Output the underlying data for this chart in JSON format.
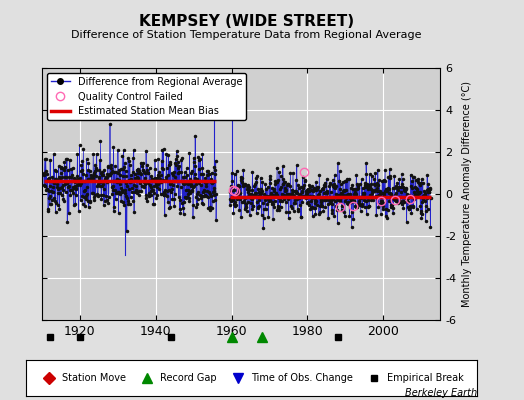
{
  "title": "KEMPSEY (WIDE STREET)",
  "subtitle": "Difference of Station Temperature Data from Regional Average",
  "ylabel": "Monthly Temperature Anomaly Difference (°C)",
  "credit": "Berkeley Earth",
  "xlim": [
    1910,
    2015
  ],
  "ylim": [
    -6,
    6
  ],
  "yticks": [
    -6,
    -4,
    -2,
    0,
    2,
    4,
    6
  ],
  "xticks": [
    1920,
    1940,
    1960,
    1980,
    2000
  ],
  "bg_color": "#e0e0e0",
  "plot_bg_color": "#d0d0d0",
  "grid_color": "#ffffff",
  "data_color": "#2222cc",
  "bias_color": "#dd0000",
  "qc_color": "#ff69b4",
  "seed": 42,
  "segment1_start": 1910.5,
  "segment1_end": 1956.0,
  "segment1_bias": 0.6,
  "segment1_n": 546,
  "segment1_mean": 0.55,
  "segment1_std": 0.72,
  "segment2_start": 1959.5,
  "segment2_end": 2012.5,
  "segment2_bias": -0.15,
  "segment2_n": 636,
  "segment2_mean": -0.05,
  "segment2_std": 0.52,
  "empirical_breaks": [
    1912,
    1920,
    1944,
    1988
  ],
  "record_gaps": [
    1960,
    1968
  ],
  "time_of_obs_changes": [],
  "station_moves": [],
  "qc_failed": [
    [
      1960.3,
      0.2
    ],
    [
      1960.8,
      0.15
    ],
    [
      1979.0,
      1.05
    ],
    [
      1988.5,
      -0.6
    ],
    [
      1992.0,
      -0.55
    ],
    [
      1999.5,
      -0.35
    ],
    [
      2003.0,
      -0.3
    ],
    [
      2007.0,
      -0.25
    ]
  ],
  "spike_lines": [
    [
      1932.0,
      -2.9,
      0.1
    ],
    [
      1955.5,
      5.4,
      0.5
    ],
    [
      1960.0,
      5.1,
      0.3
    ]
  ]
}
